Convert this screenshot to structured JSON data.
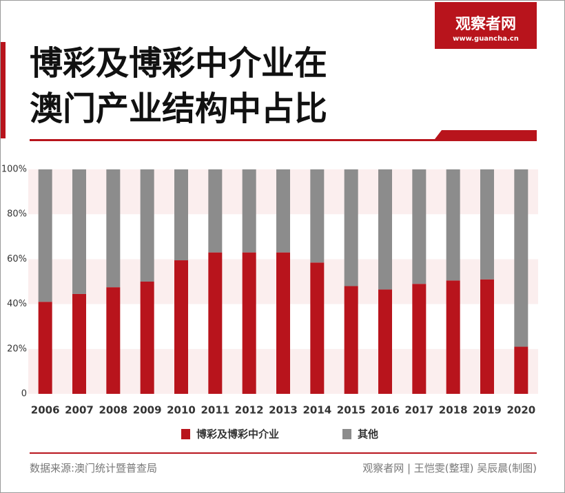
{
  "logo": {
    "name": "观察者网",
    "url": "www.guancha.cn"
  },
  "source": "数据来源:澳门统计暨普查局",
  "credits": "观察者网 | 王恺雯(整理) 吴辰晨(制图)",
  "chart_data": {
    "type": "stacked-bar",
    "title": "博彩及博彩中介业在澳门产业结构中占比",
    "categories": [
      "2006",
      "2007",
      "2008",
      "2009",
      "2010",
      "2011",
      "2012",
      "2013",
      "2014",
      "2015",
      "2016",
      "2017",
      "2018",
      "2019",
      "2020"
    ],
    "series": [
      {
        "name": "博彩及博彩中介业",
        "color": "#b8141c",
        "values": [
          41,
          44.5,
          47.5,
          50,
          59.5,
          63,
          63,
          63,
          58.5,
          48,
          46.5,
          49,
          50.5,
          51,
          21
        ]
      },
      {
        "name": "其他",
        "color": "#8c8c8c",
        "values": [
          59,
          55.5,
          52.5,
          50,
          40.5,
          37,
          37,
          37,
          41.5,
          52,
          53.5,
          51,
          49.5,
          49,
          79
        ]
      }
    ],
    "ylim": [
      0,
      100
    ],
    "yticks": [
      0,
      {
        "value": 20,
        "label": "20%"
      },
      {
        "value": 40,
        "label": "40%"
      },
      {
        "value": 60,
        "label": "60%"
      },
      {
        "value": 80,
        "label": "80%"
      },
      {
        "value": 100,
        "label": "100%"
      }
    ],
    "grid": "banded",
    "band_color": "#fbeeee"
  }
}
